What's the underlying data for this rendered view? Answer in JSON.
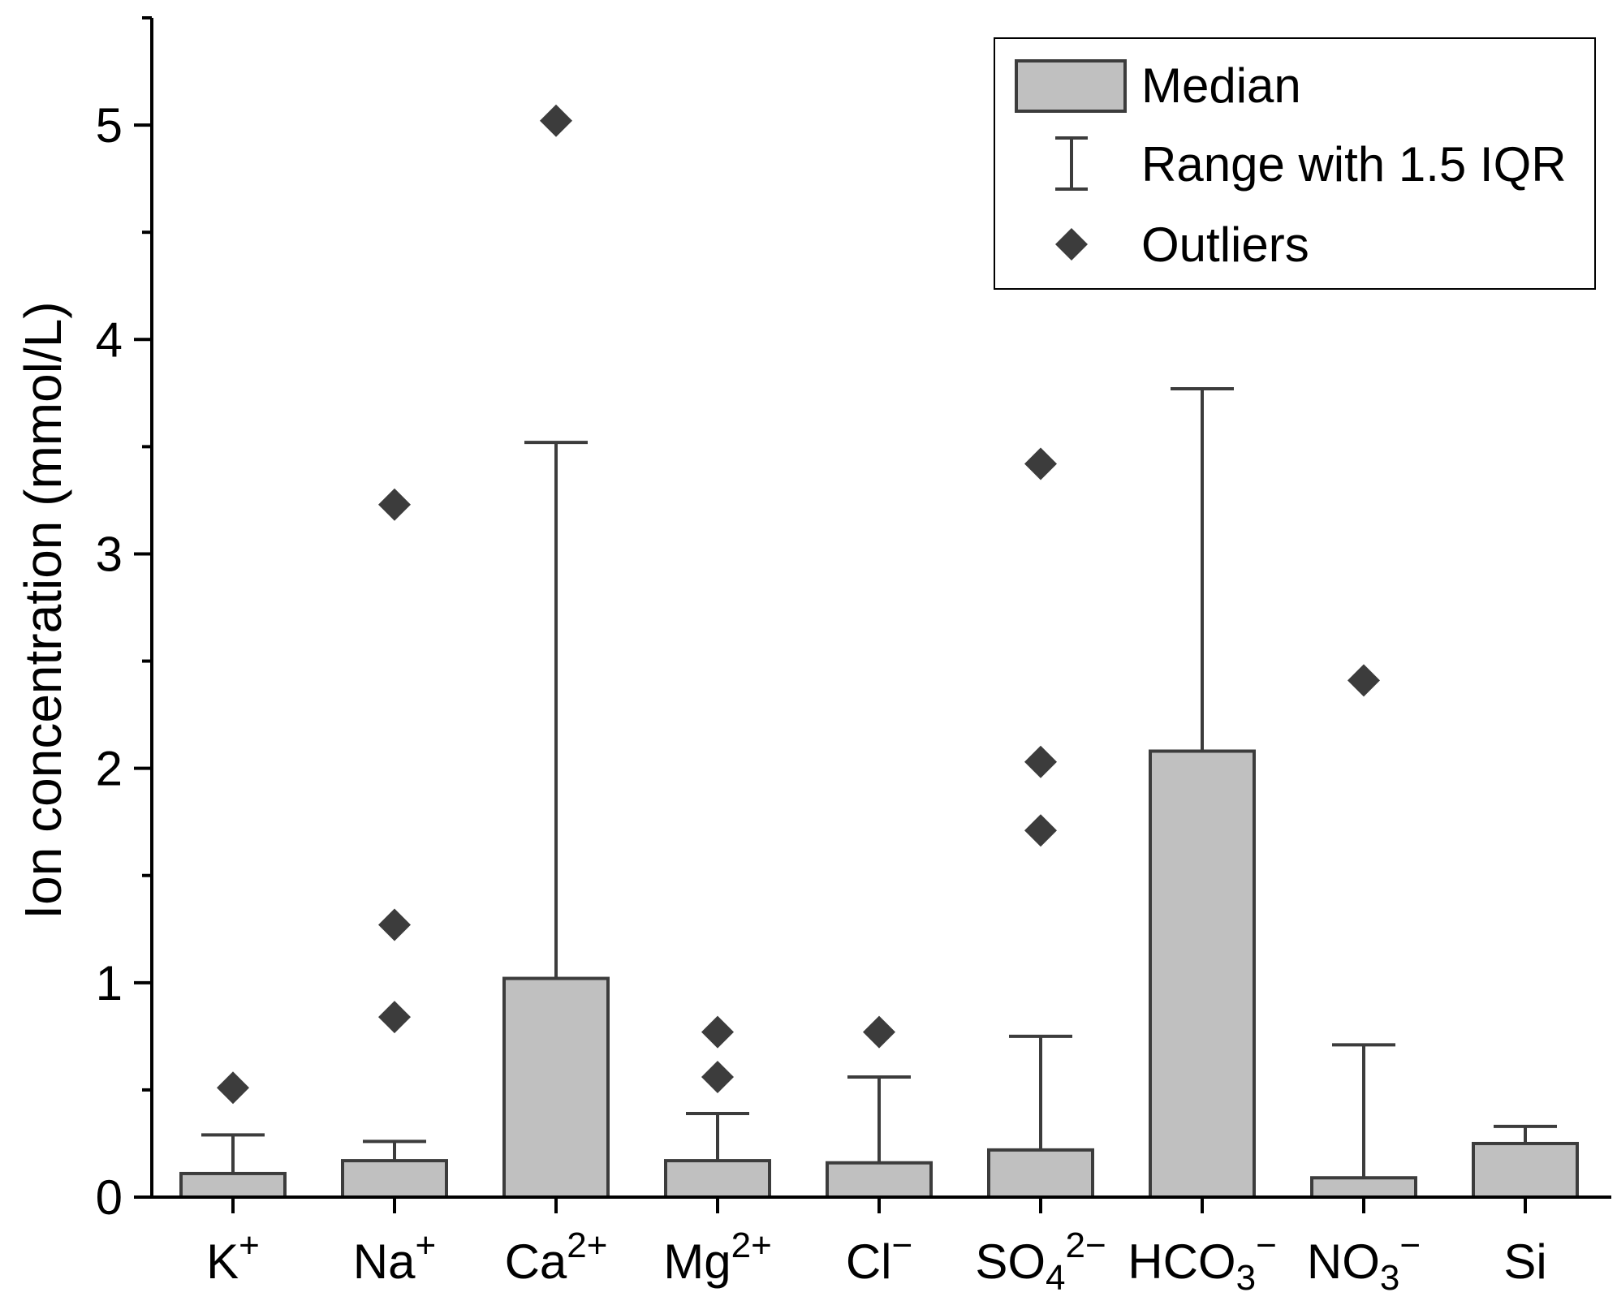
{
  "chart_data": {
    "type": "bar",
    "title": "",
    "xlabel": "",
    "ylabel": "Ion concentration (mmol/L)",
    "ylim": [
      0,
      5.5
    ],
    "yticks": [
      "0",
      "1",
      "2",
      "3",
      "4",
      "5"
    ],
    "grid": false,
    "legend_position": "top-right",
    "categories": [
      {
        "base": "K",
        "sub": "",
        "sup": "+"
      },
      {
        "base": "Na",
        "sub": "",
        "sup": "+"
      },
      {
        "base": "Ca",
        "sub": "",
        "sup": "2+"
      },
      {
        "base": "Mg",
        "sub": "",
        "sup": "2+"
      },
      {
        "base": "Cl",
        "sub": "",
        "sup": "−"
      },
      {
        "base": "SO",
        "sub": "4",
        "sup": "2−"
      },
      {
        "base": "HCO",
        "sub": "3",
        "sup": "−"
      },
      {
        "base": "NO",
        "sub": "3",
        "sup": "−"
      },
      {
        "base": "Si",
        "sub": "",
        "sup": ""
      }
    ],
    "series": [
      {
        "name": "Median",
        "values": [
          0.11,
          0.17,
          1.02,
          0.17,
          0.16,
          0.22,
          2.08,
          0.09,
          0.25
        ]
      },
      {
        "name": "Range with 1.5 IQR",
        "values": [
          0.29,
          0.26,
          3.52,
          0.39,
          0.56,
          0.75,
          3.77,
          0.71,
          0.33
        ]
      }
    ],
    "outliers": [
      {
        "category": 0,
        "value": 0.51
      },
      {
        "category": 1,
        "value": 3.23
      },
      {
        "category": 1,
        "value": 1.27
      },
      {
        "category": 1,
        "value": 0.84
      },
      {
        "category": 2,
        "value": 5.02
      },
      {
        "category": 3,
        "value": 0.77
      },
      {
        "category": 3,
        "value": 0.56
      },
      {
        "category": 4,
        "value": 0.77
      },
      {
        "category": 5,
        "value": 3.42
      },
      {
        "category": 5,
        "value": 2.03
      },
      {
        "category": 5,
        "value": 1.71
      },
      {
        "category": 7,
        "value": 2.41
      }
    ],
    "legend": {
      "median_label": "Median",
      "range_label": "Range with 1.5 IQR",
      "outliers_label": "Outliers"
    },
    "colors": {
      "bar_fill": "#c0c0c0",
      "bar_stroke": "#3c3c3c",
      "whisker": "#3c3c3c",
      "outlier": "#3c3c3c",
      "axis": "#000000"
    }
  }
}
